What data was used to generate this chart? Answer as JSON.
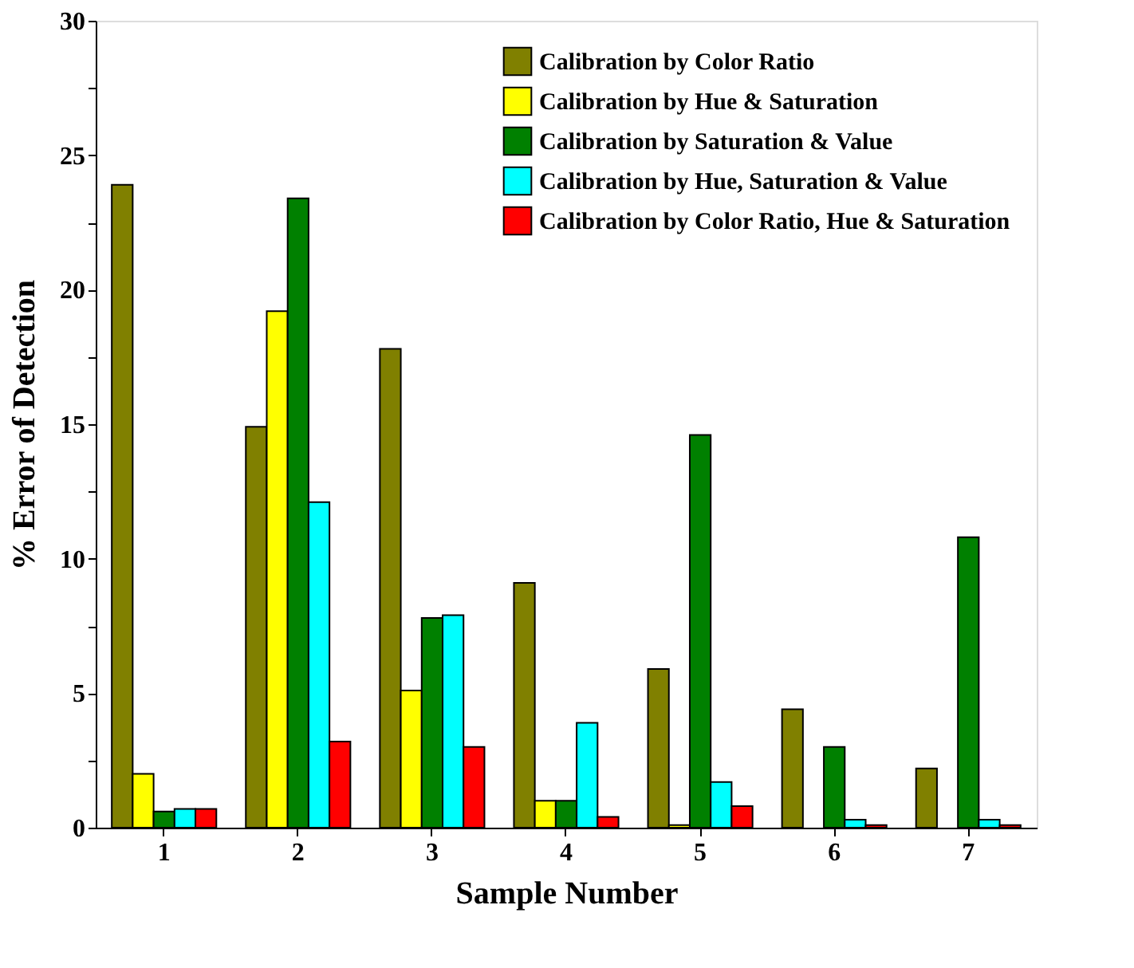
{
  "chart_data": {
    "type": "bar",
    "xlabel": "Sample Number",
    "ylabel": "% Error of Detection",
    "categories": [
      "1",
      "2",
      "3",
      "4",
      "5",
      "6",
      "7"
    ],
    "series": [
      {
        "name": "Calibration by Color Ratio",
        "color": "#808000",
        "values": [
          23.9,
          14.9,
          17.8,
          9.1,
          5.9,
          4.4,
          2.2
        ]
      },
      {
        "name": "Calibration by Hue & Saturation",
        "color": "#ffff00",
        "values": [
          2.0,
          19.2,
          5.1,
          1.0,
          0.1,
          null,
          null
        ]
      },
      {
        "name": "Calibration by Saturation & Value",
        "color": "#008000",
        "values": [
          0.6,
          23.4,
          7.8,
          1.0,
          14.6,
          3.0,
          10.8
        ]
      },
      {
        "name": "Calibration by Hue, Saturation & Value",
        "color": "#00ffff",
        "values": [
          0.7,
          12.1,
          7.9,
          3.9,
          1.7,
          0.3,
          0.3
        ]
      },
      {
        "name": "Calibration by Color Ratio, Hue & Saturation",
        "color": "#ff0000",
        "values": [
          0.7,
          3.2,
          3.0,
          0.4,
          0.8,
          0.1,
          0.1
        ]
      }
    ],
    "ylim": [
      0,
      30
    ],
    "yticks": [
      0,
      {
        "value": 2.5,
        "label": null
      },
      5,
      {
        "value": 7.5,
        "label": null
      },
      10,
      {
        "value": 12.5,
        "label": null
      },
      15,
      {
        "value": 17.5,
        "label": null
      },
      20,
      {
        "value": 22.5,
        "label": null
      },
      25,
      {
        "value": 27.5,
        "label": null
      },
      30
    ],
    "legend": "top right",
    "grid": false
  }
}
